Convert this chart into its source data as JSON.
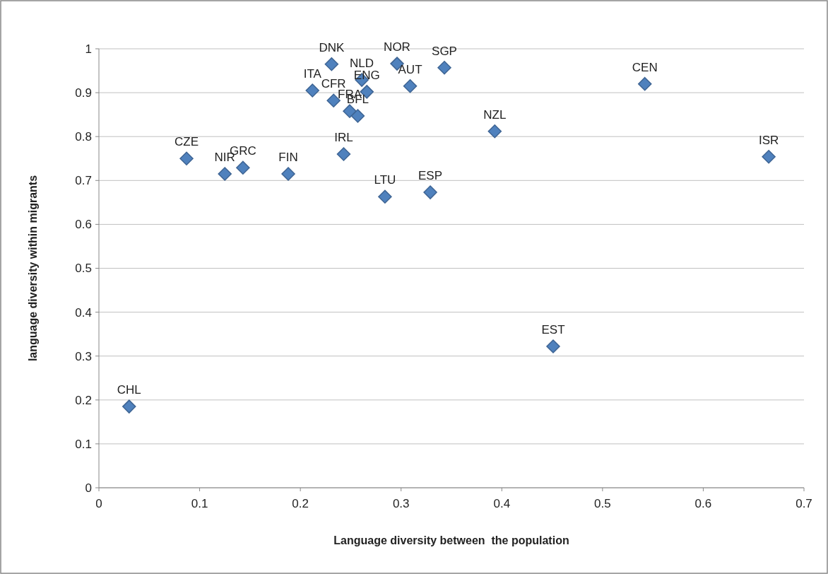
{
  "chart_data": {
    "type": "scatter",
    "xlabel": "Language diversity between  the population",
    "ylabel": "language diversity within migrants",
    "xlim": [
      0,
      0.7
    ],
    "xticks": [
      0,
      0.1,
      0.2,
      0.3,
      0.4,
      0.5,
      0.6,
      0.7
    ],
    "ylim": [
      0,
      1
    ],
    "yticks": [
      0,
      0.1,
      0.2,
      0.3,
      0.4,
      0.5,
      0.6,
      0.7,
      0.8,
      0.9,
      1
    ],
    "grid": "y",
    "marker": "diamond",
    "series": [
      {
        "color": "#4f81bd",
        "x": [
          0.03,
          0.087,
          0.125,
          0.143,
          0.188,
          0.212,
          0.231,
          0.233,
          0.249,
          0.257,
          0.243,
          0.261,
          0.266,
          0.296,
          0.309,
          0.343,
          0.284,
          0.329,
          0.393,
          0.451,
          0.542,
          0.665
        ],
        "values": [
          0.185,
          0.75,
          0.715,
          0.729,
          0.715,
          0.905,
          0.965,
          0.882,
          0.858,
          0.847,
          0.76,
          0.929,
          0.902,
          0.966,
          0.915,
          0.957,
          0.663,
          0.673,
          0.812,
          0.322,
          0.92,
          0.754
        ]
      }
    ],
    "annotations": [
      {
        "text": "CHL",
        "x": 0.03,
        "y": 0.185
      },
      {
        "text": "CZE",
        "x": 0.087,
        "y": 0.75
      },
      {
        "text": "NIR",
        "x": 0.125,
        "y": 0.715
      },
      {
        "text": "GRC",
        "x": 0.143,
        "y": 0.729
      },
      {
        "text": "FIN",
        "x": 0.188,
        "y": 0.715
      },
      {
        "text": "ITA",
        "x": 0.212,
        "y": 0.905
      },
      {
        "text": "DNK",
        "x": 0.231,
        "y": 0.965
      },
      {
        "text": "CFR",
        "x": 0.233,
        "y": 0.882
      },
      {
        "text": "FRA",
        "x": 0.249,
        "y": 0.858
      },
      {
        "text": "BFL",
        "x": 0.257,
        "y": 0.847
      },
      {
        "text": "IRL",
        "x": 0.243,
        "y": 0.76
      },
      {
        "text": "NLD",
        "x": 0.261,
        "y": 0.929
      },
      {
        "text": "ENG",
        "x": 0.266,
        "y": 0.902
      },
      {
        "text": "NOR",
        "x": 0.296,
        "y": 0.966
      },
      {
        "text": "AUT",
        "x": 0.309,
        "y": 0.915
      },
      {
        "text": "SGP",
        "x": 0.343,
        "y": 0.957
      },
      {
        "text": "LTU",
        "x": 0.284,
        "y": 0.663
      },
      {
        "text": "ESP",
        "x": 0.329,
        "y": 0.673
      },
      {
        "text": "NZL",
        "x": 0.393,
        "y": 0.812
      },
      {
        "text": "EST",
        "x": 0.451,
        "y": 0.322
      },
      {
        "text": "CEN",
        "x": 0.542,
        "y": 0.92
      },
      {
        "text": "ISR",
        "x": 0.665,
        "y": 0.754
      }
    ]
  }
}
